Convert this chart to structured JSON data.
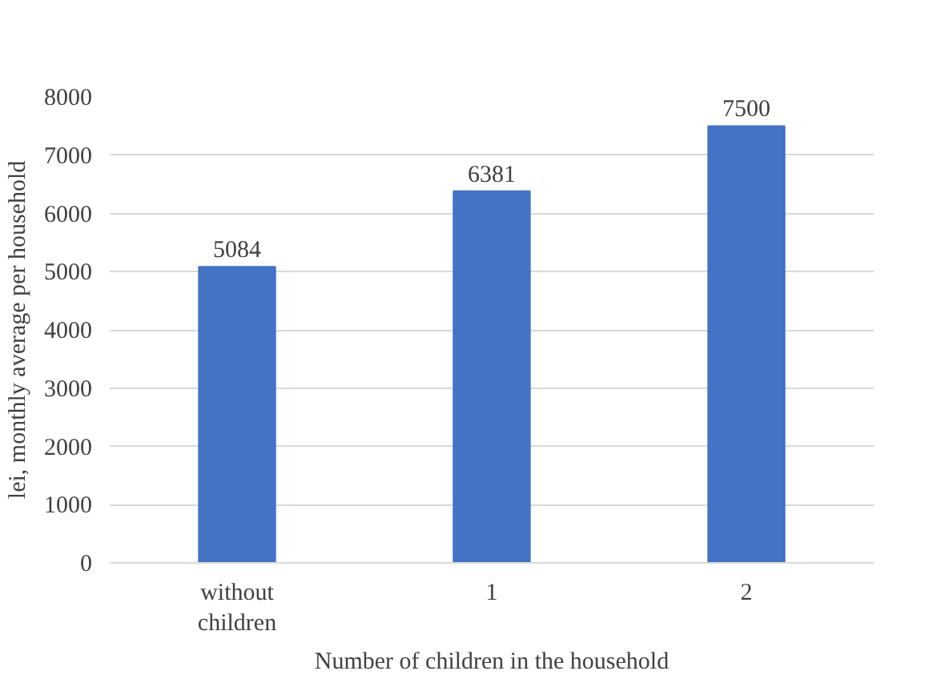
{
  "chart_data": {
    "type": "bar",
    "xlabel": "Number of children in the household",
    "ylabel": "lei, monthly average per household",
    "categories": [
      "without children",
      "1",
      "2"
    ],
    "values": [
      5084,
      6381,
      7500
    ],
    "color": "#4472c4",
    "ylim": [
      0,
      8000
    ],
    "yticks": [
      0,
      1000,
      2000,
      3000,
      4000,
      5000,
      6000,
      7000,
      8000
    ],
    "grid": "y",
    "data_labels": true
  }
}
